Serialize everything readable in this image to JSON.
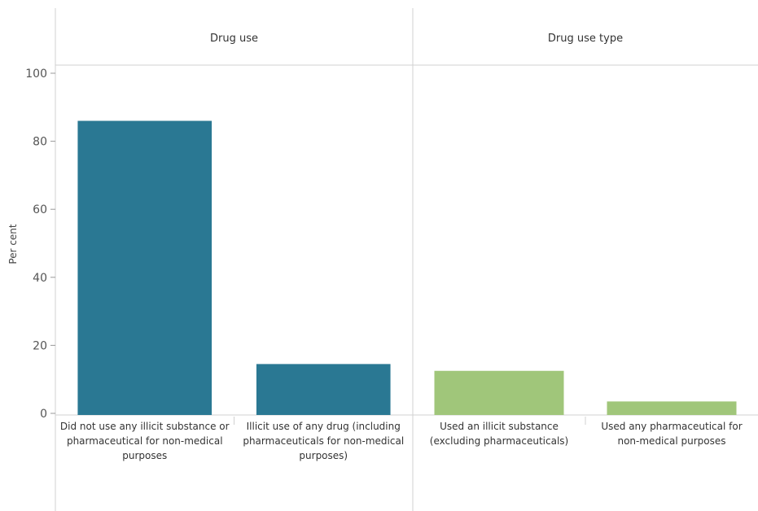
{
  "chart_data": {
    "type": "bar",
    "ylabel": "Per cent",
    "ylim": [
      0,
      100
    ],
    "yticks": [
      0,
      20,
      40,
      60,
      80,
      100
    ],
    "grid": false,
    "panels": [
      {
        "title": "Drug use",
        "color": "#2a7893",
        "categories": [
          [
            "Did not use any illicit substance or",
            "pharmaceutical for non-medical",
            "purposes"
          ],
          [
            "Illicit use of any drug (including",
            "pharmaceuticals for non-medical",
            "purposes)"
          ]
        ],
        "values": [
          86,
          14.5
        ]
      },
      {
        "title": "Drug use type",
        "color": "#a0c67a",
        "categories": [
          [
            "Used an illicit substance",
            "(excluding pharmaceuticals)"
          ],
          [
            "Used any pharmaceutical for",
            "non-medical purposes"
          ]
        ],
        "values": [
          12.5,
          3.5
        ]
      }
    ]
  }
}
